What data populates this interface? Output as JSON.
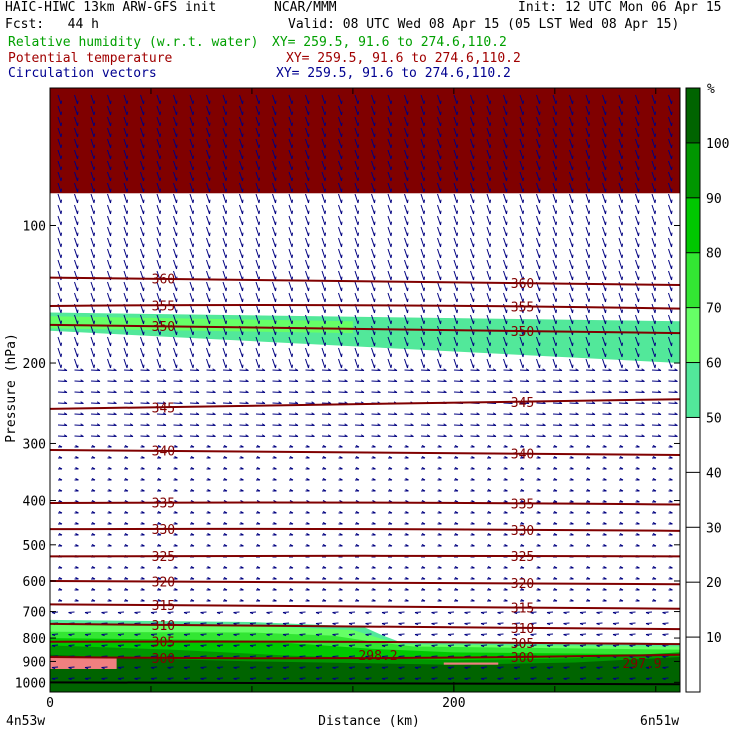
{
  "header": {
    "title": "HAIC-HIWC 13km ARW-GFS init",
    "org": "NCAR/MMM",
    "init": "Init: 12 UTC Mon 06 Apr 15",
    "fcst": "Fcst:   44 h",
    "valid": "Valid: 08 UTC Wed 08 Apr 15 (05 LST Wed 08 Apr 15)",
    "fields": [
      {
        "label": "Relative humidity (w.r.t. water)",
        "xy": "XY= 259.5, 91.6 to 274.6,110.2",
        "color": "#00a000"
      },
      {
        "label": "Potential temperature",
        "xy": "XY= 259.5, 91.6 to 274.6,110.2",
        "color": "#a00000"
      },
      {
        "label": "Circulation vectors",
        "xy": "XY= 259.5, 91.6 to 274.6,110.2",
        "color": "#000090"
      }
    ]
  },
  "chart_data": {
    "type": "heatmap",
    "title": "Relative humidity (w.r.t. water) / Potential temperature / Circulation vectors",
    "xlabel": "Distance (km)",
    "ylabel": "Pressure (hPa)",
    "xlim": [
      0,
      312
    ],
    "ylim": [
      1050,
      50
    ],
    "y_scale": "log",
    "x_ticks": [
      0,
      200
    ],
    "y_ticks": [
      100,
      200,
      300,
      400,
      500,
      600,
      700,
      800,
      900,
      1000
    ],
    "x_end_labels": [
      "4n53w",
      "6n51w"
    ],
    "colorbar": {
      "unit": "%",
      "ticks": [
        10,
        20,
        30,
        40,
        50,
        60,
        70,
        80,
        90,
        100
      ],
      "levels": [
        0,
        50,
        60,
        70,
        80,
        90,
        100,
        110
      ],
      "colors": [
        "#ffffff",
        "#52e89a",
        "#66ff66",
        "#33e633",
        "#00c800",
        "#009600",
        "#006400",
        "#f08080"
      ]
    },
    "rh_top_layer": {
      "pressure_range": [
        55,
        85
      ],
      "color": "#800000"
    },
    "rh_bands": [
      {
        "level": 50,
        "top": [
          [
            0,
            730
          ],
          [
            100,
            738
          ],
          [
            155,
            755
          ],
          [
            165,
            790
          ],
          [
            173,
            815
          ],
          [
            312,
            820
          ]
        ]
      },
      {
        "level": 60,
        "top": [
          [
            0,
            745
          ],
          [
            100,
            752
          ],
          [
            150,
            768
          ],
          [
            163,
            800
          ],
          [
            175,
            825
          ],
          [
            312,
            835
          ]
        ]
      },
      {
        "level": 70,
        "top": [
          [
            0,
            775
          ],
          [
            100,
            778
          ],
          [
            140,
            790
          ],
          [
            160,
            815
          ],
          [
            180,
            835
          ],
          [
            312,
            848
          ]
        ]
      },
      {
        "level": 80,
        "top": [
          [
            0,
            800
          ],
          [
            100,
            810
          ],
          [
            160,
            845
          ],
          [
            200,
            860
          ],
          [
            260,
            865
          ],
          [
            312,
            870
          ]
        ]
      },
      {
        "level": 90,
        "top": [
          [
            0,
            830
          ],
          [
            60,
            848
          ],
          [
            120,
            875
          ],
          [
            200,
            895
          ],
          [
            260,
            885
          ],
          [
            312,
            860
          ]
        ]
      },
      {
        "level": 100,
        "top": [
          [
            0,
            870
          ],
          [
            40,
            885
          ],
          [
            100,
            900
          ],
          [
            200,
            915
          ],
          [
            260,
            905
          ],
          [
            312,
            880
          ]
        ]
      }
    ],
    "rh_upper_band": [
      {
        "level": 50,
        "top": [
          [
            0,
            155
          ],
          [
            312,
            162
          ]
        ],
        "bottom": [
          [
            0,
            170
          ],
          [
            312,
            200
          ]
        ]
      },
      {
        "level": 60,
        "top": [
          [
            0,
            158
          ],
          [
            150,
            162
          ]
        ],
        "bottom": [
          [
            0,
            168
          ],
          [
            150,
            172
          ]
        ]
      }
    ],
    "rh_saturated_patches": [
      {
        "level": 100,
        "x_range": [
          0,
          33
        ],
        "pressure_range": [
          880,
          935
        ]
      },
      {
        "level": 100,
        "x_range": [
          195,
          222
        ],
        "pressure_range": [
          905,
          915
        ]
      }
    ],
    "theta_contours": [
      {
        "value": 360,
        "pressure": [
          130,
          132,
          135
        ]
      },
      {
        "value": 355,
        "pressure": [
          150,
          148,
          152
        ]
      },
      {
        "value": 350,
        "pressure": [
          165,
          168,
          172
        ]
      },
      {
        "value": 345,
        "pressure": [
          252,
          247,
          240
        ]
      },
      {
        "value": 340,
        "pressure": [
          310,
          312,
          318
        ]
      },
      {
        "value": 335,
        "pressure": [
          405,
          402,
          408
        ]
      },
      {
        "value": 330,
        "pressure": [
          462,
          460,
          466
        ]
      },
      {
        "value": 325,
        "pressure": [
          530,
          527,
          530
        ]
      },
      {
        "value": 320,
        "pressure": [
          600,
          602,
          610
        ]
      },
      {
        "value": 315,
        "pressure": [
          675,
          680,
          690
        ]
      },
      {
        "value": 310,
        "pressure": [
          745,
          755,
          765
        ]
      },
      {
        "value": 305,
        "pressure": [
          815,
          812,
          825
        ]
      },
      {
        "value": 300,
        "pressure": [
          880,
          895,
          870
        ]
      }
    ],
    "theta_x": [
      0,
      156,
      312
    ],
    "surface": {
      "x": [
        0,
        312
      ],
      "pressure": [
        1000,
        1010
      ]
    },
    "surface_labels": [
      "298.2",
      "297.9"
    ]
  }
}
